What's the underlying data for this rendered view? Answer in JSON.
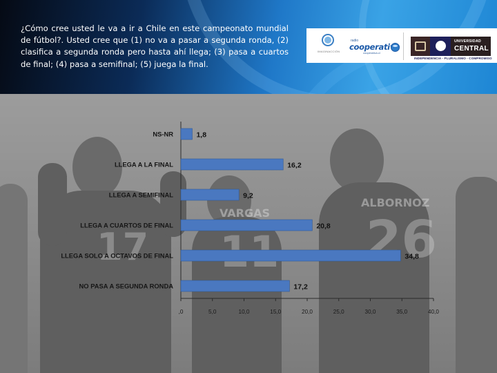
{
  "header": {
    "question": "¿Cómo cree usted le va a ir a Chile en este campeonato mundial de fútbol?. Usted cree que (1) no va a pasar a segunda ronda, (2) clasifica a segunda ronda pero hasta ahí llega; (3) pasa a cuartos de final; (4) pasa a semifinal; (5) juega la final."
  },
  "logos": {
    "imaginacion_text": "IMAGINACCIÓN",
    "radio_text": "radio",
    "cooperativa_text": "cooperativa",
    "cooperativa_sub": "cooperativa.cl",
    "universidad_line1": "UNIVERSIDAD",
    "universidad_line2": "CENTRAL",
    "universidad_motto": "INDEPENDENCIA - PLURALISMO - COMPROMISO"
  },
  "photo": {
    "jersey_names": [
      "VARGAS",
      "ALBORNOZ"
    ],
    "jersey_numbers": [
      "17",
      "11",
      "26"
    ]
  },
  "colors": {
    "bar": "#4a78c0",
    "bar_stroke": "#2f5a9a"
  },
  "chart_data": {
    "type": "bar",
    "orientation": "horizontal",
    "categories": [
      "NS-NR",
      "LLEGA  A LA FINAL",
      "LLEGA  A SEMIFINAL",
      "LLEGA  A CUARTOS DE FINAL",
      "LLEGA SOLO A OCTAVOS DE FINAL",
      "NO PASA  A SEGUNDA RONDA"
    ],
    "values": [
      1.8,
      16.2,
      9.2,
      20.8,
      34.8,
      17.2
    ],
    "value_labels": [
      "1,8",
      "16,2",
      "9,2",
      "20,8",
      "34,8",
      "17,2"
    ],
    "xlim": [
      0,
      40
    ],
    "xticks": [
      ",0",
      "5,0",
      "10,0",
      "15,0",
      "20,0",
      "25,0",
      "30,0",
      "35,0",
      "40,0"
    ],
    "title": "",
    "xlabel": "",
    "ylabel": "",
    "grid": false,
    "legend": false
  }
}
